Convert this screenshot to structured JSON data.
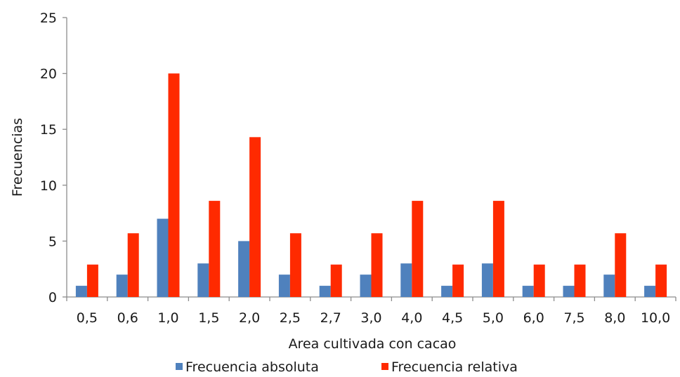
{
  "chart_data": {
    "type": "bar",
    "title": "",
    "xlabel": "Area cultivada con cacao",
    "ylabel": "Frecuencias",
    "ylim": [
      0,
      25
    ],
    "yticks": [
      0,
      5,
      10,
      15,
      20,
      25
    ],
    "grid": false,
    "legend_position": "bottom",
    "categories": [
      "0,5",
      "0,6",
      "1,0",
      "1,5",
      "2,0",
      "2,5",
      "2,7",
      "3,0",
      "4,0",
      "4,5",
      "5,0",
      "6,0",
      "7,5",
      "8,0",
      "10,0"
    ],
    "series": [
      {
        "name": "Frecuencia absoluta",
        "color": "#4f81bd",
        "values": [
          1,
          2,
          7,
          3,
          5,
          2,
          1,
          2,
          3,
          1,
          3,
          1,
          1,
          2,
          1
        ]
      },
      {
        "name": "Frecuencia relativa",
        "color": "#ff2a00",
        "values": [
          2.9,
          5.7,
          20.0,
          8.6,
          14.3,
          5.7,
          2.9,
          5.7,
          8.6,
          2.9,
          8.6,
          2.9,
          2.9,
          5.7,
          2.9
        ]
      }
    ]
  }
}
